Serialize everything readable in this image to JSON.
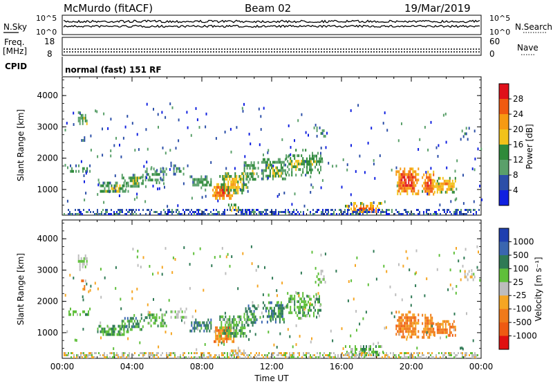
{
  "header": {
    "station": "McMurdo (fitACF)",
    "beam": "Beam 02",
    "date": "19/Mar/2019"
  },
  "strip": {
    "nsky_label": "N.Sky",
    "nsky_ticks": [
      "10^5",
      "10^0"
    ],
    "nsearch_label": "N.Search",
    "nsearch_ticks": [
      "10^5",
      "10^0"
    ],
    "freq_label": "Freq.",
    "freq_unit": "[MHz]",
    "freq_ticks": [
      "18",
      "8"
    ],
    "nave_label": "Nave",
    "nave_ticks": [
      "60",
      "0"
    ],
    "cpid_label": "CPID",
    "cpid_value": "normal (fast) 151 RF"
  },
  "chart_data": [
    {
      "type": "heatmap",
      "parameter": "power",
      "ylabel": "Slant Range [km]",
      "ylim": [
        180,
        4600
      ],
      "yticks": [
        "4000",
        "3000",
        "2000",
        "1000"
      ],
      "colorbar_label": "Power [dB]",
      "colorbar_ticks": [
        "28",
        "24",
        "20",
        "16",
        "12",
        "8",
        "4"
      ],
      "colorbar_colors": [
        "#e0101a",
        "#f05a10",
        "#f79a12",
        "#f2c21a",
        "#2f8a3a",
        "#5aa06a",
        "#2c4fa8",
        "#1020e0"
      ]
    },
    {
      "type": "heatmap",
      "parameter": "velocity",
      "ylabel": "Slant Range [km]",
      "ylim": [
        180,
        4600
      ],
      "yticks": [
        "4000",
        "3000",
        "2000",
        "1000"
      ],
      "colorbar_label": "Velocity [m s⁻¹]",
      "colorbar_ticks": [
        "1000",
        "500",
        "100",
        "25",
        "-25",
        "-100",
        "-500",
        "-1000"
      ],
      "colorbar_colors": [
        "#1f3fb0",
        "#3a66b0",
        "#2f7a55",
        "#5fbf3a",
        "#bdbdbd",
        "#f5a623",
        "#f07a1a",
        "#ef5a12",
        "#e01010"
      ]
    }
  ],
  "xaxis": {
    "label": "Time UT",
    "ticks": [
      "00:00",
      "04:00",
      "08:00",
      "12:00",
      "16:00",
      "20:00",
      "00:00"
    ]
  }
}
